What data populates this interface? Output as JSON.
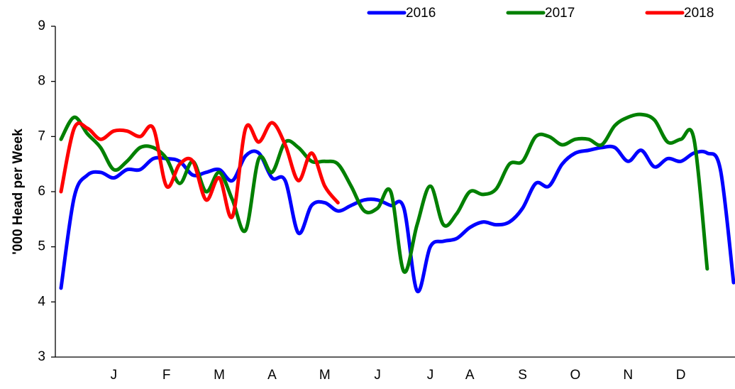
{
  "chart_data": {
    "type": "line",
    "y_label": "'000 Head per Week",
    "categories": [
      null,
      null,
      null,
      null,
      "J",
      null,
      null,
      null,
      "F",
      null,
      null,
      null,
      "M",
      null,
      null,
      null,
      "A",
      null,
      null,
      null,
      "M",
      null,
      null,
      null,
      "J",
      null,
      null,
      null,
      "J",
      null,
      null,
      "A",
      null,
      null,
      null,
      "S",
      null,
      null,
      null,
      "O",
      null,
      null,
      null,
      "N",
      null,
      null,
      null,
      "D",
      null,
      null,
      null,
      null
    ],
    "series": [
      {
        "name": "2016",
        "color": "#0000ff",
        "values": [
          4.25,
          5.9,
          6.3,
          6.35,
          6.25,
          6.4,
          6.4,
          6.6,
          6.6,
          6.55,
          6.3,
          6.35,
          6.4,
          6.2,
          6.65,
          6.7,
          6.25,
          6.2,
          5.25,
          5.75,
          5.8,
          5.65,
          5.75,
          5.85,
          5.85,
          5.75,
          5.7,
          4.2,
          5.0,
          5.1,
          5.15,
          5.35,
          5.45,
          5.4,
          5.45,
          5.7,
          6.15,
          6.1,
          6.5,
          6.7,
          6.75,
          6.8,
          6.8,
          6.55,
          6.75,
          6.45,
          6.6,
          6.55,
          6.7,
          6.7,
          6.4,
          4.35
        ]
      },
      {
        "name": "2017",
        "color": "#008000",
        "values": [
          6.95,
          7.35,
          7.05,
          6.8,
          6.4,
          6.55,
          6.8,
          6.8,
          6.6,
          6.15,
          6.55,
          6.0,
          6.35,
          5.85,
          5.3,
          6.6,
          6.35,
          6.9,
          6.8,
          6.55,
          6.55,
          6.5,
          6.1,
          5.65,
          5.7,
          6.0,
          4.55,
          5.4,
          6.1,
          5.4,
          5.6,
          6.0,
          5.95,
          6.05,
          6.5,
          6.55,
          7.0,
          7.0,
          6.85,
          6.95,
          6.95,
          6.85,
          7.2,
          7.35,
          7.4,
          7.3,
          6.9,
          6.95,
          6.95,
          4.6,
          null,
          null
        ]
      },
      {
        "name": "2018",
        "color": "#ff0000",
        "values": [
          6.0,
          7.15,
          7.15,
          6.95,
          7.1,
          7.1,
          7.0,
          7.15,
          6.1,
          6.5,
          6.55,
          5.85,
          6.25,
          5.55,
          7.15,
          6.9,
          7.25,
          6.85,
          6.2,
          6.7,
          6.1,
          5.8,
          null,
          null,
          null,
          null,
          null,
          null,
          null,
          null,
          null,
          null,
          null,
          null,
          null,
          null,
          null,
          null,
          null,
          null,
          null,
          null,
          null,
          null,
          null,
          null,
          null,
          null,
          null,
          null,
          null,
          null
        ]
      }
    ],
    "ylim": [
      3,
      9
    ],
    "yticks": [
      3,
      4,
      5,
      6,
      7,
      8,
      9
    ],
    "grid": false,
    "legend": "top"
  }
}
